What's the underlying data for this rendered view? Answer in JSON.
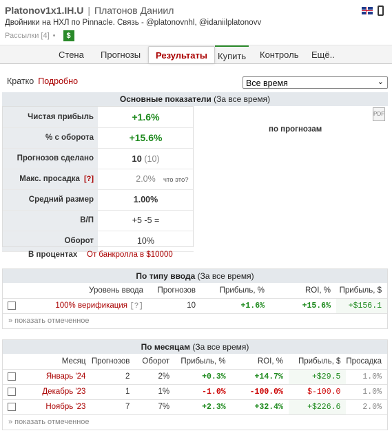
{
  "header": {
    "nick": "Platonov1x1.IH.U",
    "separator": "|",
    "name": "Платонов Даниил",
    "description": "Двойники на НХЛ по Pinnacle. Связь - @platonovnhl, @idaniilplatonovv",
    "subscriptions": "Рассылки [4]",
    "dot": "•",
    "dollar": "$"
  },
  "nav": {
    "tabs": [
      "Стена",
      "Прогнозы",
      "Результаты",
      "Купить",
      "Контроль",
      "Ещё.."
    ],
    "active": "Результаты"
  },
  "mode": {
    "brief": "Кратко",
    "detailed": "Подробно"
  },
  "period_select": {
    "value": "Все время",
    "arrow": "⌄"
  },
  "main_stats": {
    "title": "Основные показатели",
    "period": "(За все время)",
    "rows": [
      {
        "label": "Чистая прибыль",
        "value": "+1.6%"
      },
      {
        "label": "% с оборота",
        "value": "+15.6%"
      },
      {
        "label": "Прогнозов сделано",
        "value": "10",
        "extra": "(10)"
      },
      {
        "label": "Макс. просадка",
        "help": "[?]",
        "value": "2.0%",
        "note": "что это?"
      },
      {
        "label": "Средний размер",
        "value": "1.00%"
      },
      {
        "label": "В/П",
        "value": "+5 -5 ="
      },
      {
        "label": "Оборот",
        "value": "10%"
      }
    ],
    "side_label": "по прогнозам",
    "pdf_icon": "PDF"
  },
  "units": {
    "percent": "В процентах",
    "bankroll": "От банкролла в $10000"
  },
  "by_type": {
    "title": "По типу ввода",
    "period": "(За все время)",
    "columns": [
      "Уровень ввода",
      "Прогнозов",
      "Прибыль, %",
      "ROI, %",
      "Прибыль, $"
    ],
    "rows": [
      {
        "level": "100% верификация",
        "help": "[?]",
        "count": "10",
        "profit_pct": "+1.6%",
        "roi": "+15.6%",
        "profit_usd": "+$156.1"
      }
    ],
    "show_marked": "» показать отмеченное"
  },
  "by_month": {
    "title": "По месяцам",
    "period": "(За все время)",
    "columns": [
      "Месяц",
      "Прогнозов",
      "Оборот",
      "Прибыль, %",
      "ROI, %",
      "Прибыль, $",
      "Просадка"
    ],
    "rows": [
      {
        "month": "Январь '24",
        "count": "2",
        "turnover": "2%",
        "profit_pct": "+0.3%",
        "roi": "+14.7%",
        "profit_usd": "+$29.5",
        "drawdown": "1.0%"
      },
      {
        "month": "Декабрь '23",
        "count": "1",
        "turnover": "1%",
        "profit_pct": "-1.0%",
        "roi": "-100.0%",
        "profit_usd": "$-100.0",
        "drawdown": "1.0%"
      },
      {
        "month": "Ноябрь '23",
        "count": "7",
        "turnover": "7%",
        "profit_pct": "+2.3%",
        "roi": "+32.4%",
        "profit_usd": "+$226.6",
        "drawdown": "2.0%"
      }
    ],
    "show_marked": "» показать отмеченное"
  },
  "colors": {
    "positive": "#1e8a1e",
    "negative": "#cc0000",
    "accent": "#aa0000",
    "header_bg": "#e4e8ec"
  }
}
